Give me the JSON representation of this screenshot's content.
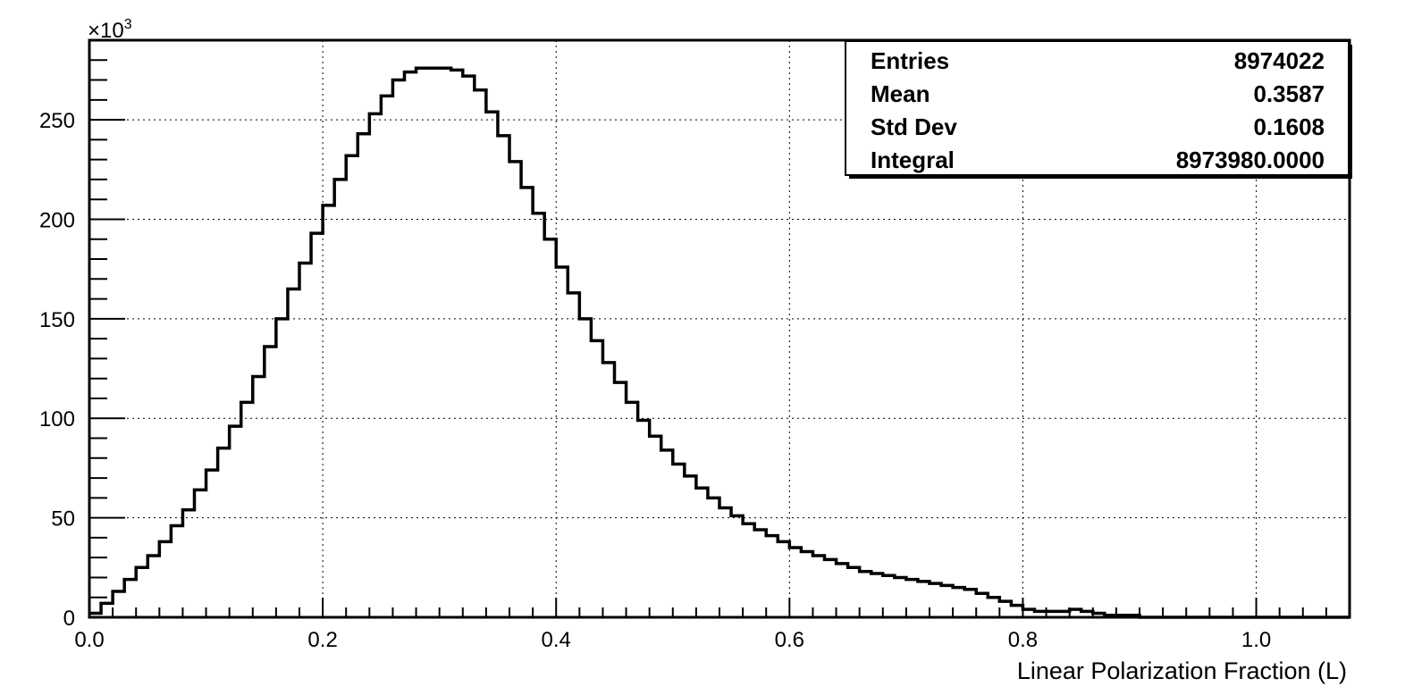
{
  "chart_data": {
    "type": "histogram",
    "xlabel": "Linear Polarization Fraction (L)",
    "ylabel": "",
    "y_scale_label": "×10",
    "y_scale_exponent": "3",
    "xlim": [
      0.0,
      1.08
    ],
    "ylim": [
      0,
      290
    ],
    "grid": true,
    "x_ticks": [
      0.0,
      0.2,
      0.4,
      0.6,
      0.8,
      1.0
    ],
    "x_tick_labels": [
      "0.0",
      "0.2",
      "0.4",
      "0.6",
      "0.8",
      "1.0"
    ],
    "y_ticks": [
      0,
      50,
      100,
      150,
      200,
      250
    ],
    "y_tick_labels": [
      "0",
      "50",
      "100",
      "150",
      "200",
      "250"
    ],
    "bin_width": 0.01,
    "bin_start": 0.0,
    "values": [
      2,
      7,
      13,
      19,
      25,
      31,
      38,
      46,
      54,
      64,
      74,
      85,
      96,
      108,
      121,
      136,
      150,
      165,
      178,
      193,
      207,
      220,
      232,
      243,
      253,
      262,
      270,
      274,
      276,
      276,
      276,
      275,
      272,
      265,
      254,
      242,
      229,
      216,
      203,
      190,
      176,
      163,
      150,
      139,
      128,
      118,
      108,
      99,
      91,
      84,
      77,
      71,
      65,
      60,
      55,
      51,
      47,
      44,
      41,
      38,
      35,
      33,
      31,
      29,
      27,
      25,
      23,
      22,
      21,
      20,
      19,
      18,
      17,
      16,
      15,
      14,
      12,
      10,
      8,
      6,
      4,
      3,
      3,
      3,
      4,
      3,
      2,
      1,
      1,
      1,
      0,
      0,
      0,
      0,
      0,
      0,
      0,
      0,
      0,
      0,
      0,
      0,
      0,
      0,
      0,
      0,
      0,
      0
    ],
    "stats": {
      "rows": [
        {
          "label": "Entries",
          "value": "8974022"
        },
        {
          "label": "Mean",
          "value": "0.3587"
        },
        {
          "label": "Std Dev",
          "value": "0.1608"
        },
        {
          "label": "Integral",
          "value": "8973980.0000"
        }
      ]
    }
  }
}
